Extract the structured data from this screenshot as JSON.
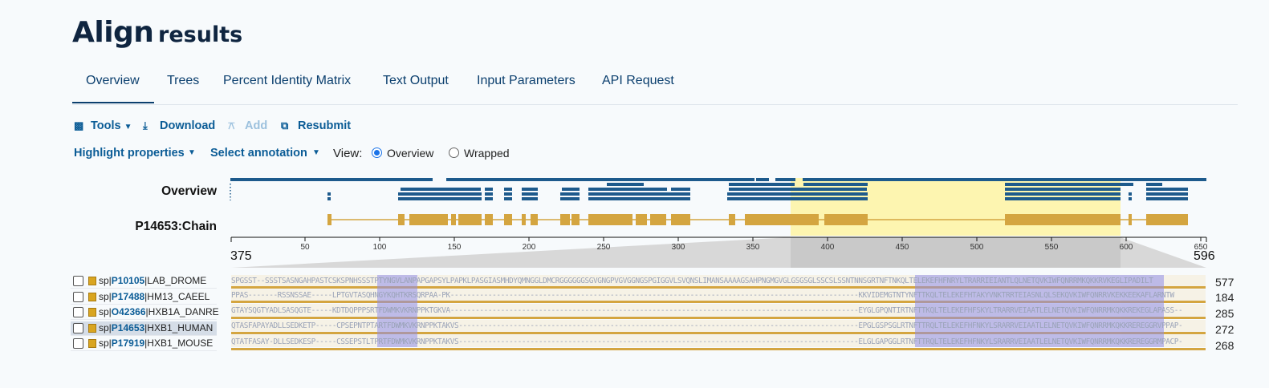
{
  "title": {
    "main": "Align",
    "sub": "results"
  },
  "tabs": [
    {
      "label": "Overview"
    },
    {
      "label": "Trees"
    },
    {
      "label": "Percent Identity Matrix"
    },
    {
      "label": "Text Output"
    },
    {
      "label": "Input Parameters"
    },
    {
      "label": "API Request"
    }
  ],
  "toolbar": {
    "tools_label": "Tools",
    "download_label": "Download",
    "add_label": "Add",
    "resubmit_label": "Resubmit"
  },
  "controls": {
    "highlight_label": "Highlight properties",
    "annotation_label": "Select annotation",
    "view_label": "View:",
    "view_options": [
      {
        "label": "Overview",
        "selected": true
      },
      {
        "label": "Wrapped",
        "selected": false
      }
    ]
  },
  "tracks": {
    "overview_label": "Overview",
    "chain_label": "P14653:Chain"
  },
  "axis": {
    "ticks": [
      "50",
      "100",
      "150",
      "200",
      "250",
      "300",
      "350",
      "400",
      "450",
      "500",
      "550",
      "600",
      "650"
    ],
    "zoom_start": "375",
    "zoom_end": "596"
  },
  "sequences": [
    {
      "prefix": "sp|",
      "accession": "P10105",
      "name": "|LAB_DROME",
      "end": "577",
      "selected": false,
      "text": "SPGSST--SSSTSASNGAHPASTCSKSPNHSSSTPTYNGVLANPAPGAPSYLPAPKLPASGIASMHDYQMNGGLDMCRGGGGGGSGVGNGPVGVGGNGSPGIGGVLSVQNSLIMANSAAAAGSAHPNGMGVGLGSGSGLSSCSLSSNTNNSGRTNFTNKQLTELEKEFHFNRYLTRARRIEIANTLQLNETQVKIWFQNRRMKQKKRVKEGLIPADILT"
    },
    {
      "prefix": "sp|",
      "accession": "P17488",
      "name": "|HM13_CAEEL",
      "end": "184",
      "selected": false,
      "text": "PPAS-------RSSNSSAE-----LPTGVTASQHNGYKQHTKRSQRPAA-PK-------------------------------------------------------------------------------------------------KKVIDEMGTNTYNFTTKQLTELEKEFHTAKYVNKTRRTEIASNLQLSEKQVKIWFQNRRVKEKKEEKAFLARNTW"
    },
    {
      "prefix": "sp|",
      "accession": "O42366",
      "name": "|HXB1A_DANRE",
      "end": "285",
      "selected": false,
      "text": "GTAYSQGTYADLSASQGTE-----KDTDQPPPSRTFDWMKVKRNPPKTGKVA-------------------------------------------------------------------------------------------------EYGLGPQNTIRTNFTTKQLTELEKEFHFSKYLTRARRVEIAATLELNETQVKIWFQNRRMKQKKREKEGLAPASS--"
    },
    {
      "prefix": "sp|",
      "accession": "P14653",
      "name": "|HXB1_HUMAN",
      "end": "272",
      "selected": true,
      "text": "QTASFAPAYADLLSEDKETP-----CPSEPNTPTARTFDWMKVKRNPPKTAKVS-----------------------------------------------------------------------------------------------EPGLGSPSGLRTNFTTRQLTELEKEFHFNKYLSRARRVEIAATLELNETQVKIWFQNRRMKQKKREREGGRVPPAP-"
    },
    {
      "prefix": "sp|",
      "accession": "P17919",
      "name": "|HXB1_MOUSE",
      "end": "268",
      "selected": false,
      "text": "QTATFASAY-DLLSEDKESP-----CSSEPSTLTPRTFDWMKVKRNPPKTAKVS-----------------------------------------------------------------------------------------------ELGLGAPGGLRTNFTTRQLTELEKEFHFNKYLSRARRVEIAATLELNETQVKIWFQNRRMKQKKREREGGRMPACP-"
    }
  ],
  "colors": {
    "accent": "#0b5c96",
    "overview_bar": "#1d5a8c",
    "chain": "#d4a540",
    "highlight": "#fdf5b0",
    "conserved": "#8f8ee8"
  }
}
